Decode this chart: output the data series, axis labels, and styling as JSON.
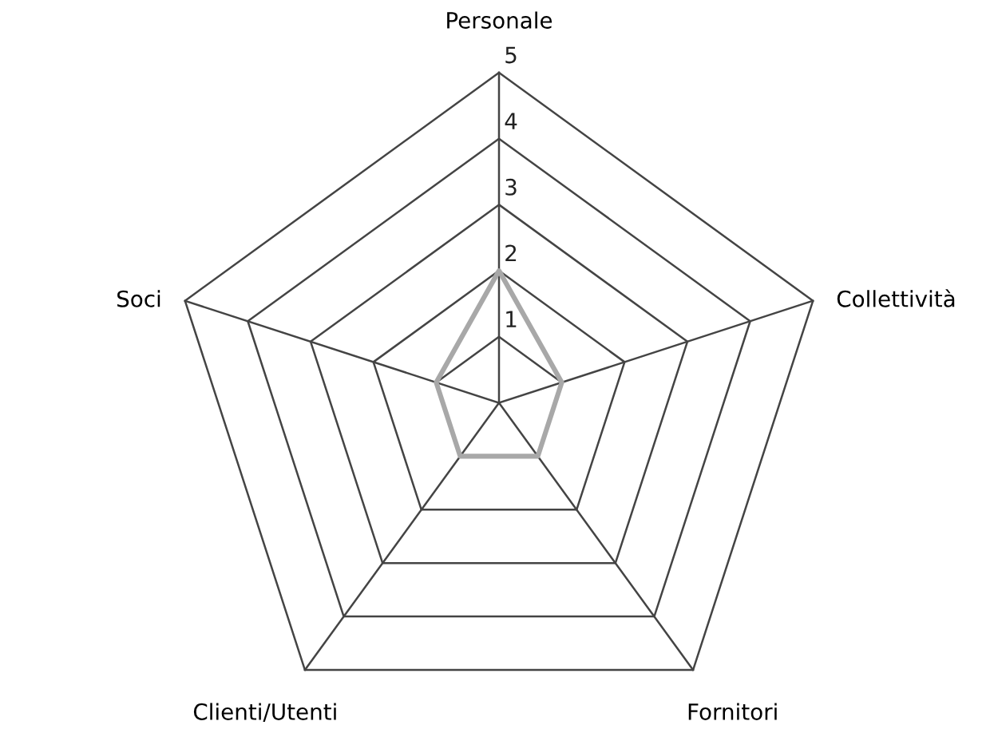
{
  "chart_data": {
    "type": "radar",
    "categories": [
      "Personale",
      "Collettività",
      "Fornitori",
      "Clienti/Utenti",
      "Soci"
    ],
    "series": [
      {
        "color": "#a8a8a8",
        "values": [
          2,
          1,
          1,
          1,
          1
        ]
      }
    ],
    "ylim": [
      0,
      5
    ],
    "yticks": [
      1,
      2,
      3,
      4,
      5
    ],
    "grid": true,
    "legend": false
  }
}
